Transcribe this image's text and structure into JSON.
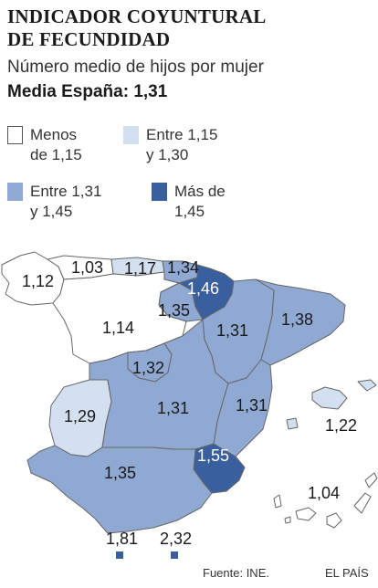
{
  "header": {
    "title_line1": "INDICADOR COYUNTURAL",
    "title_line2": "DE FECUNDIDAD",
    "subtitle": "Número medio de hijos por mujer",
    "average": "Media España: 1,31"
  },
  "legend": [
    {
      "line1": "Menos",
      "line2": "de 1,15",
      "color": "#ffffff"
    },
    {
      "line1": "Entre 1,15",
      "line2": "y 1,30",
      "color": "#d3e0ef"
    },
    {
      "line1": "Entre 1,31",
      "line2": "y 1,45",
      "color": "#8fa9d3"
    },
    {
      "line1": "Más de",
      "line2": "1,45",
      "color": "#3a5f9e"
    }
  ],
  "regions": [
    {
      "name": "galicia",
      "value": "1,12"
    },
    {
      "name": "asturias",
      "value": "1,03"
    },
    {
      "name": "cantabria",
      "value": "1,17"
    },
    {
      "name": "pais-vasco",
      "value": "1,34"
    },
    {
      "name": "navarra",
      "value": "1,46"
    },
    {
      "name": "la-rioja",
      "value": "1,35"
    },
    {
      "name": "castilla-y-leon",
      "value": "1,14"
    },
    {
      "name": "aragon",
      "value": "1,31"
    },
    {
      "name": "cataluna",
      "value": "1,38"
    },
    {
      "name": "madrid",
      "value": "1,32"
    },
    {
      "name": "extremadura",
      "value": "1,29"
    },
    {
      "name": "castilla-la-mancha",
      "value": "1,31"
    },
    {
      "name": "valencia",
      "value": "1,31"
    },
    {
      "name": "baleares",
      "value": "1,22"
    },
    {
      "name": "murcia",
      "value": "1,55"
    },
    {
      "name": "andalucia",
      "value": "1,35"
    },
    {
      "name": "canarias",
      "value": "1,04"
    },
    {
      "name": "ceuta",
      "value": "1,81"
    },
    {
      "name": "melilla",
      "value": "2,32"
    }
  ],
  "footer": {
    "source": "Fuente: INE.",
    "brand": "EL PAÍS"
  }
}
